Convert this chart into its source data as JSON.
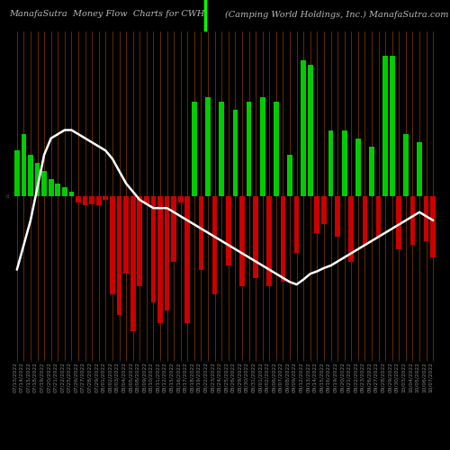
{
  "title_left": "ManafaSutra  Money Flow  Charts for CWH",
  "title_right": "(Camping World Holdings, Inc.) ManafaSutra.com",
  "background_color": "#000000",
  "bar_area_color": "#000000",
  "line_color": "#ffffff",
  "grid_color": "#8B3A00",
  "labels": [
    "07/13/2022",
    "07/14/2022",
    "07/15/2022",
    "07/18/2022",
    "07/19/2022",
    "07/20/2022",
    "07/21/2022",
    "07/22/2022",
    "07/25/2022",
    "07/26/2022",
    "07/27/2022",
    "07/28/2022",
    "07/29/2022",
    "08/01/2022",
    "08/02/2022",
    "08/03/2022",
    "08/04/2022",
    "08/05/2022",
    "08/08/2022",
    "08/09/2022",
    "08/10/2022",
    "08/11/2022",
    "08/12/2022",
    "08/15/2022",
    "08/16/2022",
    "08/17/2022",
    "08/18/2022",
    "08/19/2022",
    "08/22/2022",
    "08/23/2022",
    "08/24/2022",
    "08/25/2022",
    "08/26/2022",
    "08/29/2022",
    "08/30/2022",
    "08/31/2022",
    "09/01/2022",
    "09/02/2022",
    "09/06/2022",
    "09/07/2022",
    "09/08/2022",
    "09/09/2022",
    "09/12/2022",
    "09/13/2022",
    "09/14/2022",
    "09/15/2022",
    "09/16/2022",
    "09/19/2022",
    "09/20/2022",
    "09/21/2022",
    "09/22/2022",
    "09/23/2022",
    "09/26/2022",
    "09/27/2022",
    "09/28/2022",
    "09/29/2022",
    "09/30/2022",
    "10/03/2022",
    "10/04/2022",
    "10/05/2022",
    "10/06/2022",
    "10/07/2022"
  ],
  "values": [
    55,
    75,
    50,
    40,
    30,
    20,
    15,
    10,
    5,
    -8,
    -12,
    -10,
    -12,
    -5,
    -120,
    -145,
    -95,
    -165,
    -110,
    -10,
    -130,
    -155,
    -140,
    -80,
    -8,
    -155,
    115,
    -90,
    120,
    -120,
    115,
    -85,
    105,
    -110,
    115,
    -100,
    120,
    -110,
    115,
    -105,
    50,
    -70,
    165,
    160,
    -45,
    -35,
    80,
    -50,
    80,
    -80,
    70,
    -60,
    60,
    -50,
    170,
    170,
    -65,
    75,
    -60,
    65,
    -55,
    -75
  ],
  "line_values": [
    0.56,
    0.59,
    0.62,
    0.66,
    0.7,
    0.72,
    0.725,
    0.73,
    0.73,
    0.725,
    0.72,
    0.715,
    0.71,
    0.705,
    0.695,
    0.68,
    0.665,
    0.655,
    0.645,
    0.64,
    0.635,
    0.635,
    0.635,
    0.63,
    0.625,
    0.62,
    0.615,
    0.61,
    0.605,
    0.6,
    0.595,
    0.59,
    0.585,
    0.58,
    0.575,
    0.57,
    0.565,
    0.56,
    0.555,
    0.55,
    0.545,
    0.542,
    0.548,
    0.555,
    0.558,
    0.562,
    0.565,
    0.57,
    0.575,
    0.58,
    0.585,
    0.59,
    0.595,
    0.6,
    0.605,
    0.61,
    0.615,
    0.62,
    0.625,
    0.63,
    0.625,
    0.62
  ],
  "ylim": [
    -200,
    200
  ],
  "line_ylim": [
    0.45,
    0.85
  ],
  "title_fontsize": 7,
  "tick_fontsize": 4.2
}
